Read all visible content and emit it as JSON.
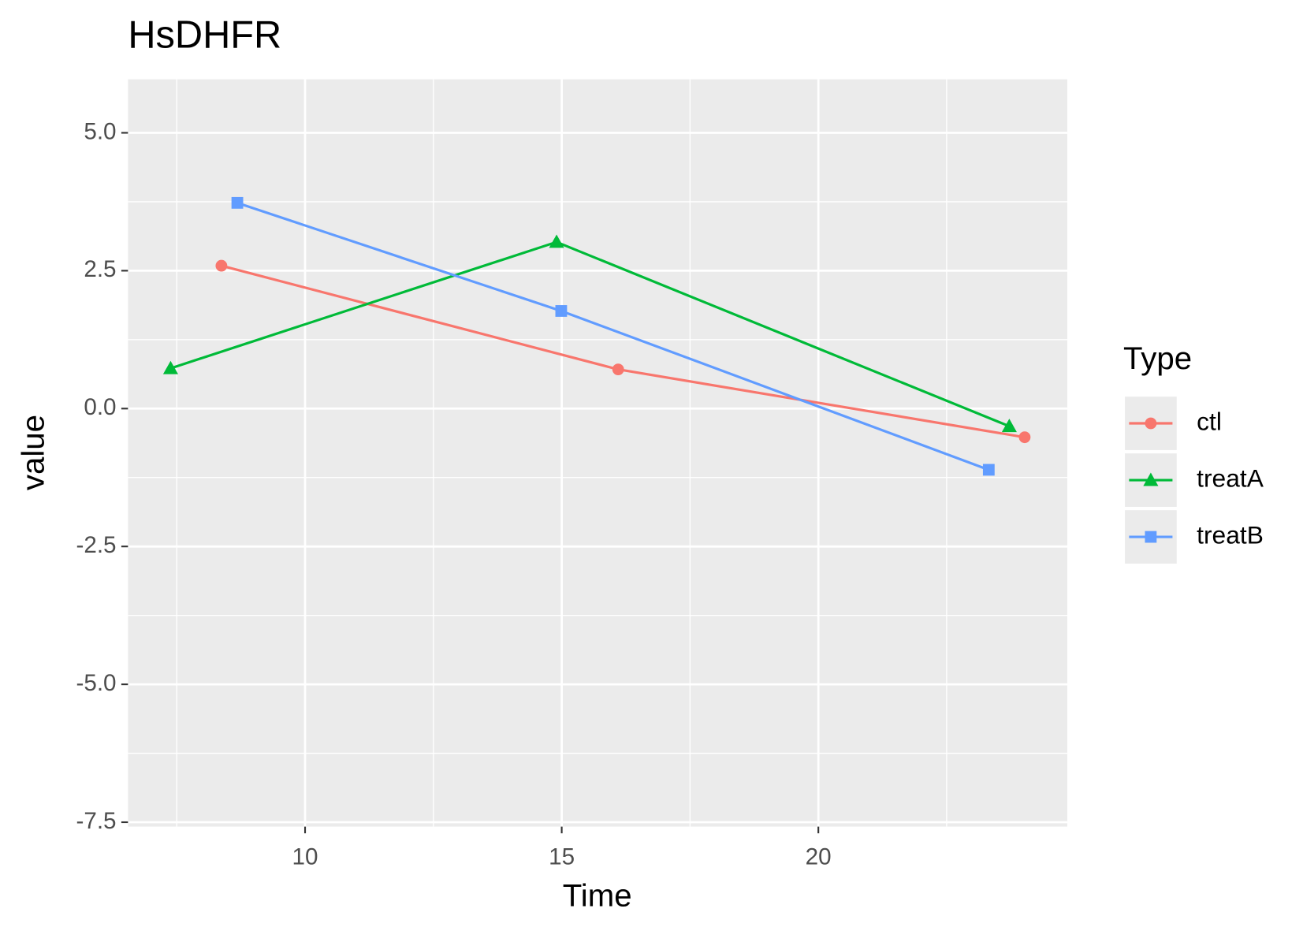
{
  "chart_data": {
    "type": "line",
    "title": "HsDHFR",
    "x_label": "Time",
    "y_label": "value",
    "legend_title": "Type",
    "legend_position": "right",
    "grid": true,
    "xlim": [
      6.55,
      24.85
    ],
    "xticks": [
      10,
      15,
      20
    ],
    "ylim": [
      -7.58,
      5.97
    ],
    "yticks": [
      {
        "value": 5,
        "label": "5.0"
      },
      2.5,
      {
        "value": 0,
        "label": "0.0"
      },
      -2.5,
      {
        "value": -5,
        "label": "-5.0"
      },
      -7.5
    ],
    "series": [
      {
        "name": "ctl",
        "color": "#f8766d",
        "shape": "circle",
        "x": [
          8.37,
          16.1,
          24.02
        ],
        "values": [
          2.59,
          0.71,
          -0.52
        ]
      },
      {
        "name": "treatA",
        "color": "#00ba38",
        "shape": "triangle",
        "x": [
          7.38,
          14.9,
          23.72
        ],
        "values": [
          0.73,
          3.02,
          -0.32
        ]
      },
      {
        "name": "treatB",
        "color": "#619cff",
        "shape": "square",
        "x": [
          8.68,
          14.99,
          23.32
        ],
        "values": [
          3.73,
          1.77,
          -1.11
        ]
      }
    ]
  }
}
